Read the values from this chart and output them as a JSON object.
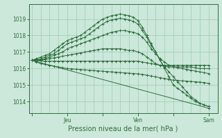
{
  "background_color": "#cce8da",
  "plot_bg_color": "#cce8da",
  "grid_color": "#99ccb3",
  "line_color": "#2d6e3e",
  "xlabel": "Pression niveau de la mer( hPa )",
  "xlabel_fontsize": 7,
  "yticks": [
    1014,
    1015,
    1016,
    1017,
    1018,
    1019
  ],
  "ylim": [
    1013.3,
    1019.9
  ],
  "xtick_labels": [
    "",
    "Jeu",
    "",
    "Ven",
    "",
    "Sam"
  ],
  "xtick_positions": [
    0,
    24,
    48,
    72,
    96,
    120
  ],
  "xlim": [
    -2,
    126
  ],
  "lines": [
    {
      "x": [
        0,
        3,
        6,
        9,
        12,
        15,
        18,
        21,
        24,
        27,
        30,
        33,
        36,
        39,
        42,
        45,
        48,
        51,
        54,
        57,
        60,
        63,
        66,
        69,
        72,
        75,
        78,
        81,
        84,
        87,
        90,
        93,
        96,
        99,
        102,
        105,
        108,
        111,
        114,
        117,
        120
      ],
      "y": [
        1016.5,
        1016.6,
        1016.7,
        1016.8,
        1016.9,
        1017.1,
        1017.3,
        1017.5,
        1017.7,
        1017.8,
        1017.9,
        1018.0,
        1018.2,
        1018.4,
        1018.6,
        1018.8,
        1019.0,
        1019.1,
        1019.2,
        1019.25,
        1019.3,
        1019.25,
        1019.2,
        1019.1,
        1018.9,
        1018.5,
        1018.0,
        1017.5,
        1017.0,
        1016.5,
        1016.0,
        1015.5,
        1015.0,
        1014.8,
        1014.6,
        1014.4,
        1014.2,
        1014.0,
        1013.9,
        1013.8,
        1013.7
      ]
    },
    {
      "x": [
        0,
        3,
        6,
        9,
        12,
        15,
        18,
        21,
        24,
        27,
        30,
        33,
        36,
        39,
        42,
        45,
        48,
        51,
        54,
        57,
        60,
        63,
        66,
        69,
        72,
        75,
        78,
        81,
        84,
        87,
        90,
        93,
        96,
        99,
        102,
        105,
        108,
        111,
        114,
        117,
        120
      ],
      "y": [
        1016.5,
        1016.55,
        1016.6,
        1016.7,
        1016.8,
        1016.9,
        1017.1,
        1017.3,
        1017.5,
        1017.6,
        1017.7,
        1017.8,
        1017.9,
        1018.1,
        1018.3,
        1018.5,
        1018.7,
        1018.85,
        1018.95,
        1019.0,
        1019.05,
        1019.0,
        1018.95,
        1018.85,
        1018.7,
        1018.3,
        1017.9,
        1017.4,
        1017.0,
        1016.5,
        1016.1,
        1015.8,
        1015.5,
        1015.2,
        1014.9,
        1014.6,
        1014.3,
        1014.1,
        1013.9,
        1013.8,
        1013.7
      ]
    },
    {
      "x": [
        0,
        3,
        6,
        9,
        12,
        15,
        18,
        21,
        24,
        27,
        30,
        33,
        36,
        39,
        42,
        45,
        48,
        51,
        54,
        57,
        60,
        63,
        66,
        69,
        72,
        75,
        78,
        81,
        84,
        87,
        90,
        93,
        96,
        99,
        102,
        105,
        108,
        111,
        114,
        117,
        120
      ],
      "y": [
        1016.5,
        1016.5,
        1016.55,
        1016.6,
        1016.7,
        1016.8,
        1016.9,
        1017.0,
        1017.2,
        1017.3,
        1017.4,
        1017.5,
        1017.6,
        1017.7,
        1017.8,
        1017.9,
        1018.0,
        1018.1,
        1018.2,
        1018.25,
        1018.3,
        1018.3,
        1018.25,
        1018.2,
        1018.1,
        1017.9,
        1017.6,
        1017.2,
        1016.9,
        1016.6,
        1016.4,
        1016.2,
        1016.1,
        1016.05,
        1016.0,
        1015.95,
        1015.9,
        1015.85,
        1015.8,
        1015.75,
        1015.7
      ]
    },
    {
      "x": [
        0,
        3,
        6,
        9,
        12,
        15,
        18,
        21,
        24,
        27,
        30,
        33,
        36,
        39,
        42,
        45,
        48,
        51,
        54,
        57,
        60,
        63,
        66,
        69,
        72,
        75,
        78,
        81,
        84,
        87,
        90,
        93,
        96,
        99,
        102,
        105,
        108,
        111,
        114,
        117,
        120
      ],
      "y": [
        1016.5,
        1016.5,
        1016.5,
        1016.55,
        1016.6,
        1016.65,
        1016.7,
        1016.75,
        1016.8,
        1016.85,
        1016.9,
        1016.95,
        1017.0,
        1017.05,
        1017.1,
        1017.15,
        1017.2,
        1017.2,
        1017.2,
        1017.2,
        1017.2,
        1017.15,
        1017.1,
        1017.1,
        1017.0,
        1016.9,
        1016.7,
        1016.5,
        1016.3,
        1016.2,
        1016.15,
        1016.1,
        1016.1,
        1016.1,
        1016.1,
        1016.1,
        1016.1,
        1016.05,
        1016.0,
        1016.0,
        1016.0
      ]
    },
    {
      "x": [
        0,
        3,
        6,
        9,
        12,
        15,
        18,
        21,
        24,
        27,
        30,
        33,
        36,
        39,
        42,
        45,
        48,
        51,
        54,
        57,
        60,
        63,
        66,
        69,
        72,
        75,
        78,
        81,
        84,
        87,
        90,
        93,
        96,
        99,
        102,
        105,
        108,
        111,
        114,
        117,
        120
      ],
      "y": [
        1016.5,
        1016.48,
        1016.46,
        1016.45,
        1016.45,
        1016.45,
        1016.45,
        1016.45,
        1016.45,
        1016.45,
        1016.45,
        1016.45,
        1016.45,
        1016.45,
        1016.45,
        1016.45,
        1016.45,
        1016.45,
        1016.45,
        1016.45,
        1016.45,
        1016.45,
        1016.45,
        1016.45,
        1016.45,
        1016.4,
        1016.35,
        1016.3,
        1016.25,
        1016.2,
        1016.2,
        1016.2,
        1016.2,
        1016.2,
        1016.2,
        1016.2,
        1016.2,
        1016.2,
        1016.2,
        1016.2,
        1016.2
      ]
    },
    {
      "x": [
        0,
        3,
        6,
        9,
        12,
        15,
        18,
        21,
        24,
        27,
        30,
        33,
        36,
        39,
        42,
        45,
        48,
        51,
        54,
        57,
        60,
        63,
        66,
        69,
        72,
        75,
        78,
        81,
        84,
        87,
        90,
        93,
        96,
        99,
        102,
        105,
        108,
        111,
        114,
        117,
        120
      ],
      "y": [
        1016.5,
        1016.4,
        1016.3,
        1016.25,
        1016.2,
        1016.15,
        1016.1,
        1016.05,
        1016.0,
        1015.98,
        1015.96,
        1015.94,
        1015.92,
        1015.9,
        1015.88,
        1015.86,
        1015.84,
        1015.82,
        1015.8,
        1015.78,
        1015.76,
        1015.74,
        1015.72,
        1015.7,
        1015.68,
        1015.65,
        1015.6,
        1015.55,
        1015.5,
        1015.45,
        1015.4,
        1015.35,
        1015.3,
        1015.28,
        1015.26,
        1015.24,
        1015.22,
        1015.2,
        1015.18,
        1015.15,
        1015.1
      ]
    },
    {
      "x": [
        0,
        120
      ],
      "y": [
        1016.5,
        1013.6
      ]
    }
  ]
}
